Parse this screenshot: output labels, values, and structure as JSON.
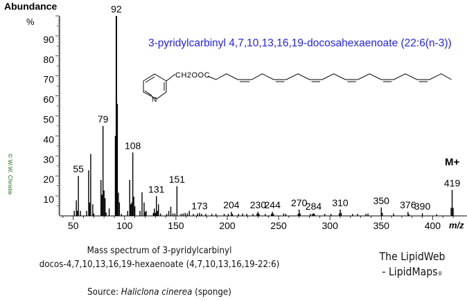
{
  "chart_data": {
    "type": "bar",
    "title": "3-pyridylcarbinyl 4,7,10,13,16,19-docosahexaenoate (22:6(n-3))",
    "ylabel": "Abundance",
    "yunit": "%",
    "xlabel": "m/z",
    "xlim": [
      40,
      430
    ],
    "ylim": [
      0,
      100
    ],
    "xticks": [
      50,
      100,
      150,
      200,
      250,
      300,
      350,
      400
    ],
    "yticks": [
      10,
      20,
      30,
      40,
      50,
      60,
      70,
      80,
      90
    ],
    "molecular_ion_label": "M+",
    "peaks": [
      [
        51,
        2.5
      ],
      [
        53,
        7.8
      ],
      [
        54,
        2.6
      ],
      [
        55,
        20
      ],
      [
        57,
        2.5
      ],
      [
        63,
        2.5
      ],
      [
        65,
        22.8
      ],
      [
        66,
        6.7
      ],
      [
        67,
        31
      ],
      [
        69,
        5.8
      ],
      [
        70,
        1.2
      ],
      [
        77,
        18
      ],
      [
        78,
        10.6
      ],
      [
        79,
        45
      ],
      [
        80,
        12.7
      ],
      [
        81,
        8.9
      ],
      [
        82,
        1.7
      ],
      [
        85,
        3.7
      ],
      [
        91,
        40
      ],
      [
        92,
        100
      ],
      [
        93,
        56
      ],
      [
        94,
        11.6
      ],
      [
        95,
        6.7
      ],
      [
        97,
        1
      ],
      [
        103,
        2.5
      ],
      [
        105,
        18
      ],
      [
        106,
        5.8
      ],
      [
        107,
        6.7
      ],
      [
        108,
        31.7
      ],
      [
        109,
        9.6
      ],
      [
        110,
        4.8
      ],
      [
        115,
        2.5
      ],
      [
        117,
        11.8
      ],
      [
        119,
        6.7
      ],
      [
        120,
        2
      ],
      [
        121,
        2.5
      ],
      [
        128,
        1.5
      ],
      [
        129,
        3.7
      ],
      [
        130,
        1.5
      ],
      [
        131,
        9.9
      ],
      [
        132,
        2.5
      ],
      [
        133,
        5.8
      ],
      [
        135,
        1.2
      ],
      [
        141,
        1
      ],
      [
        143,
        2.5
      ],
      [
        145,
        4.6
      ],
      [
        147,
        1.2
      ],
      [
        149,
        1.2
      ],
      [
        151,
        14.8
      ],
      [
        155,
        1
      ],
      [
        157,
        1.2
      ],
      [
        159,
        1.5
      ],
      [
        161,
        1.2
      ],
      [
        163,
        2.5
      ],
      [
        167,
        1
      ],
      [
        171,
        1.2
      ],
      [
        173,
        1.5
      ],
      [
        175,
        1
      ],
      [
        179,
        1
      ],
      [
        185,
        1
      ],
      [
        189,
        1
      ],
      [
        197,
        1
      ],
      [
        201,
        1
      ],
      [
        204,
        2
      ],
      [
        205,
        1
      ],
      [
        211,
        1
      ],
      [
        215,
        1.2
      ],
      [
        219,
        1
      ],
      [
        225,
        1
      ],
      [
        229,
        1.2
      ],
      [
        230,
        2
      ],
      [
        231,
        1
      ],
      [
        237,
        1
      ],
      [
        243,
        1
      ],
      [
        244,
        2
      ],
      [
        245,
        1
      ],
      [
        255,
        1.2
      ],
      [
        257,
        1
      ],
      [
        269,
        1
      ],
      [
        270,
        3.2
      ],
      [
        271,
        1.2
      ],
      [
        281,
        1
      ],
      [
        283,
        1
      ],
      [
        284,
        1.3
      ],
      [
        285,
        1
      ],
      [
        295,
        1
      ],
      [
        301,
        1
      ],
      [
        309,
        1.2
      ],
      [
        310,
        3.2
      ],
      [
        311,
        1.5
      ],
      [
        322,
        1
      ],
      [
        327,
        1
      ],
      [
        335,
        1
      ],
      [
        337,
        1.2
      ],
      [
        350,
        4.2
      ],
      [
        351,
        1.5
      ],
      [
        362,
        1.2
      ],
      [
        376,
        2
      ],
      [
        377,
        0.8
      ],
      [
        390,
        1.3
      ],
      [
        404,
        0.8
      ],
      [
        418,
        4
      ],
      [
        419,
        13
      ],
      [
        420,
        4
      ]
    ],
    "peak_labels": [
      55,
      79,
      92,
      108,
      131,
      151,
      173,
      204,
      230,
      244,
      270,
      284,
      310,
      350,
      376,
      390,
      419
    ]
  },
  "structure": {
    "substituent": "CH2OOC",
    "ring_atom": "N"
  },
  "caption": {
    "line1": "Mass spectrum of 3-pyridylcarbinyl",
    "line2": "docos-4,7,10,13,16,19-hexaenoate (4,7,10,13,16,19-22:6)",
    "source_prefix": "Source: ",
    "source_species": "Haliclona cinerea",
    "source_suffix": " (sponge)"
  },
  "branding": {
    "line1": "The LipidWeb",
    "line2": "- LipidMaps",
    "reg": "®"
  },
  "copyright": "© W.W. Christie",
  "colors": {
    "title": "#2222ee",
    "bars": "#000000",
    "copyright": "#1a6b1a"
  }
}
